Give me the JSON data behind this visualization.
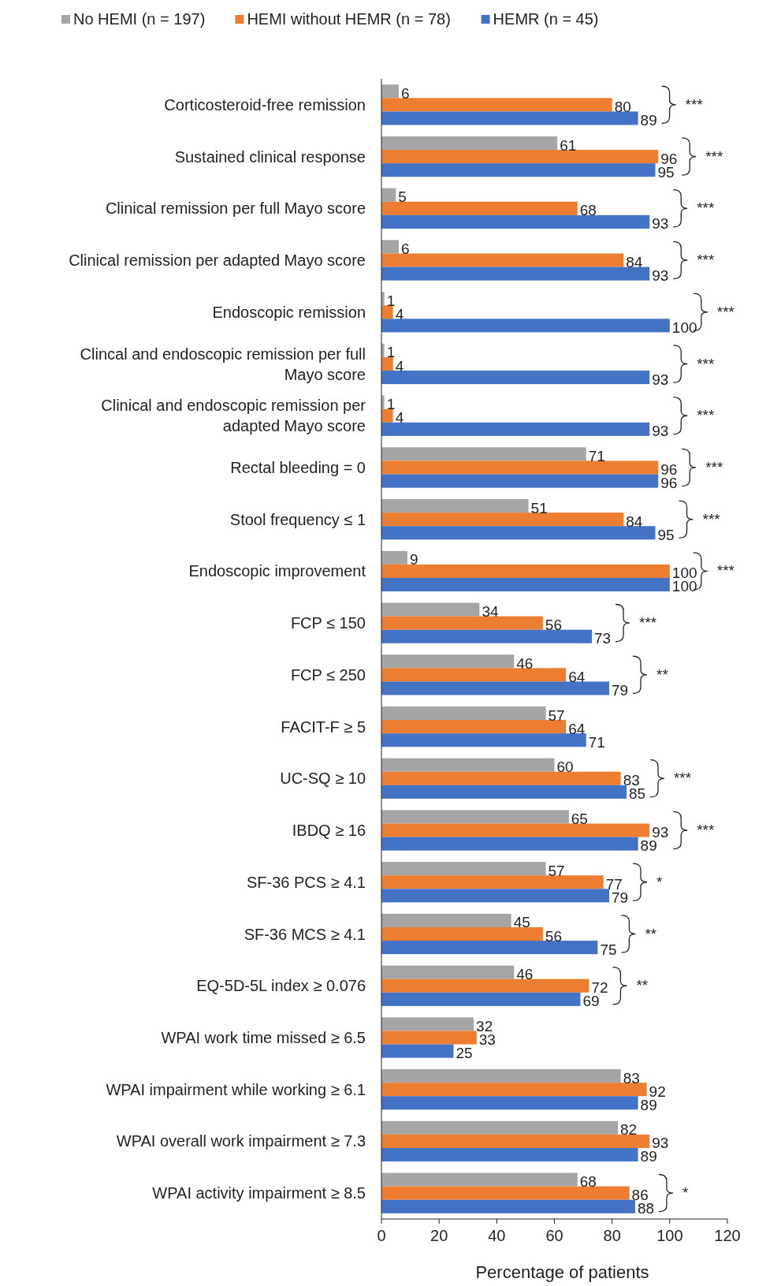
{
  "chart_data": {
    "type": "bar",
    "orientation": "horizontal",
    "xlabel": "Percentage of patients",
    "categories": [
      "Corticosteroid-free remission",
      "Sustained clinical response",
      "Clinical remission per full Mayo score",
      "Clinical remission per adapted Mayo score",
      "Endoscopic remission",
      "Clincal and endoscopic remission per full Mayo score",
      "Clinical and endoscopic remission per adapted Mayo score",
      "Rectal bleeding = 0",
      "Stool frequency ≤ 1",
      "Endoscopic improvement",
      "FCP ≤ 150",
      "FCP ≤ 250",
      "FACIT-F ≥ 5",
      "UC-SQ ≥ 10",
      "IBDQ ≥ 16",
      "SF-36 PCS ≥ 4.1",
      "SF-36 MCS ≥ 4.1",
      "EQ-5D-5L index ≥ 0.076",
      "WPAI work time missed ≥ 6.5",
      "WPAI impairment while working ≥ 6.1",
      "WPAI overall work impairment ≥ 7.3",
      "WPAI activity impairment ≥ 8.5"
    ],
    "series": [
      {
        "name": "No HEMI (n = 197)",
        "color": "#a5a5a5",
        "values": [
          6,
          61,
          5,
          6,
          1,
          1,
          1,
          71,
          51,
          9,
          34,
          46,
          57,
          60,
          65,
          57,
          45,
          46,
          32,
          83,
          82,
          68
        ]
      },
      {
        "name": "HEMI without HEMR (n = 78)",
        "color": "#ed7d31",
        "values": [
          80,
          96,
          68,
          84,
          4,
          4,
          4,
          96,
          84,
          100,
          56,
          64,
          64,
          83,
          93,
          77,
          56,
          72,
          33,
          92,
          93,
          86
        ]
      },
      {
        "name": "HEMR (n = 45)",
        "color": "#4472c4",
        "values": [
          89,
          95,
          93,
          93,
          100,
          93,
          93,
          96,
          95,
          100,
          73,
          79,
          71,
          85,
          89,
          79,
          75,
          69,
          25,
          89,
          89,
          88
        ]
      }
    ],
    "xlim": [
      0,
      120
    ],
    "xticks": [
      0,
      20,
      40,
      60,
      80,
      100,
      120
    ],
    "grid": false,
    "legend": "top",
    "data_labels": true,
    "annotations": [
      "***",
      "***",
      "***",
      "***",
      "***",
      "***",
      "***",
      "***",
      "***",
      "***",
      "***",
      "**",
      null,
      "***",
      "***",
      "*",
      "**",
      "**",
      null,
      null,
      null,
      "*"
    ]
  }
}
